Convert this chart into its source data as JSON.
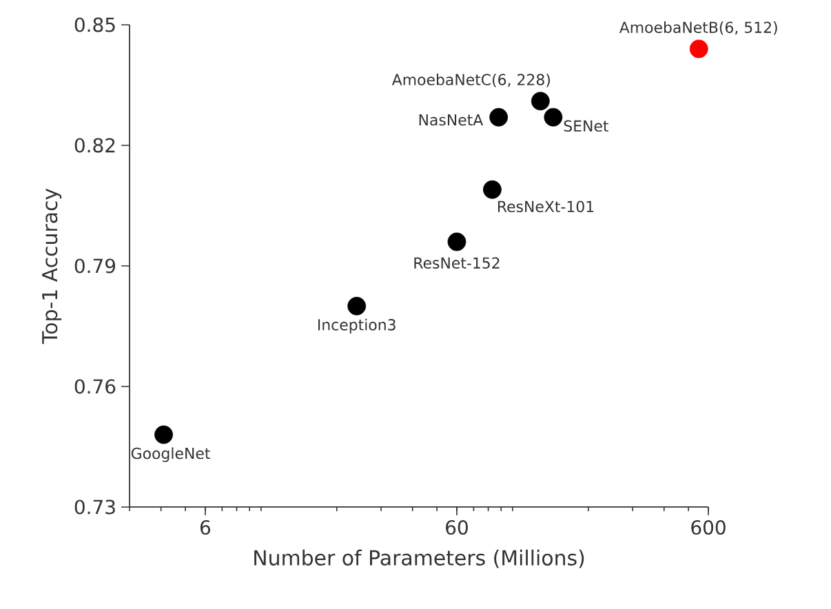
{
  "chart_data": {
    "type": "scatter",
    "xlabel": "Number of Parameters (Millions)",
    "ylabel": "Top-1 Accuracy",
    "log": "x",
    "xlim": [
      3,
      600
    ],
    "xticks": [
      6,
      60,
      600
    ],
    "ylim": [
      0.73,
      0.85
    ],
    "yticks": [
      0.73,
      0.76,
      0.79,
      0.82,
      0.85
    ],
    "x": [
      4.1,
      24,
      60,
      83,
      88,
      129,
      145,
      550
    ],
    "values": [
      0.748,
      0.78,
      0.796,
      0.809,
      0.827,
      0.831,
      0.827,
      0.844
    ],
    "colors": [
      "#000000",
      "#000000",
      "#000000",
      "#000000",
      "#000000",
      "#000000",
      "#000000",
      "#ff0000"
    ],
    "annotations": [
      {
        "text": "GoogleNet",
        "x": 4.1,
        "y": 0.748
      },
      {
        "text": "Inception3",
        "x": 24,
        "y": 0.78
      },
      {
        "text": "ResNet-152",
        "x": 60,
        "y": 0.796
      },
      {
        "text": "ResNeXt-101",
        "x": 83,
        "y": 0.809
      },
      {
        "text": "NasNetA",
        "x": 88,
        "y": 0.827
      },
      {
        "text": "AmoebaNetC(6, 228)",
        "x": 129,
        "y": 0.831
      },
      {
        "text": "SENet",
        "x": 145,
        "y": 0.827
      },
      {
        "text": "AmoebaNetB(6, 512)",
        "x": 550,
        "y": 0.844
      }
    ]
  }
}
